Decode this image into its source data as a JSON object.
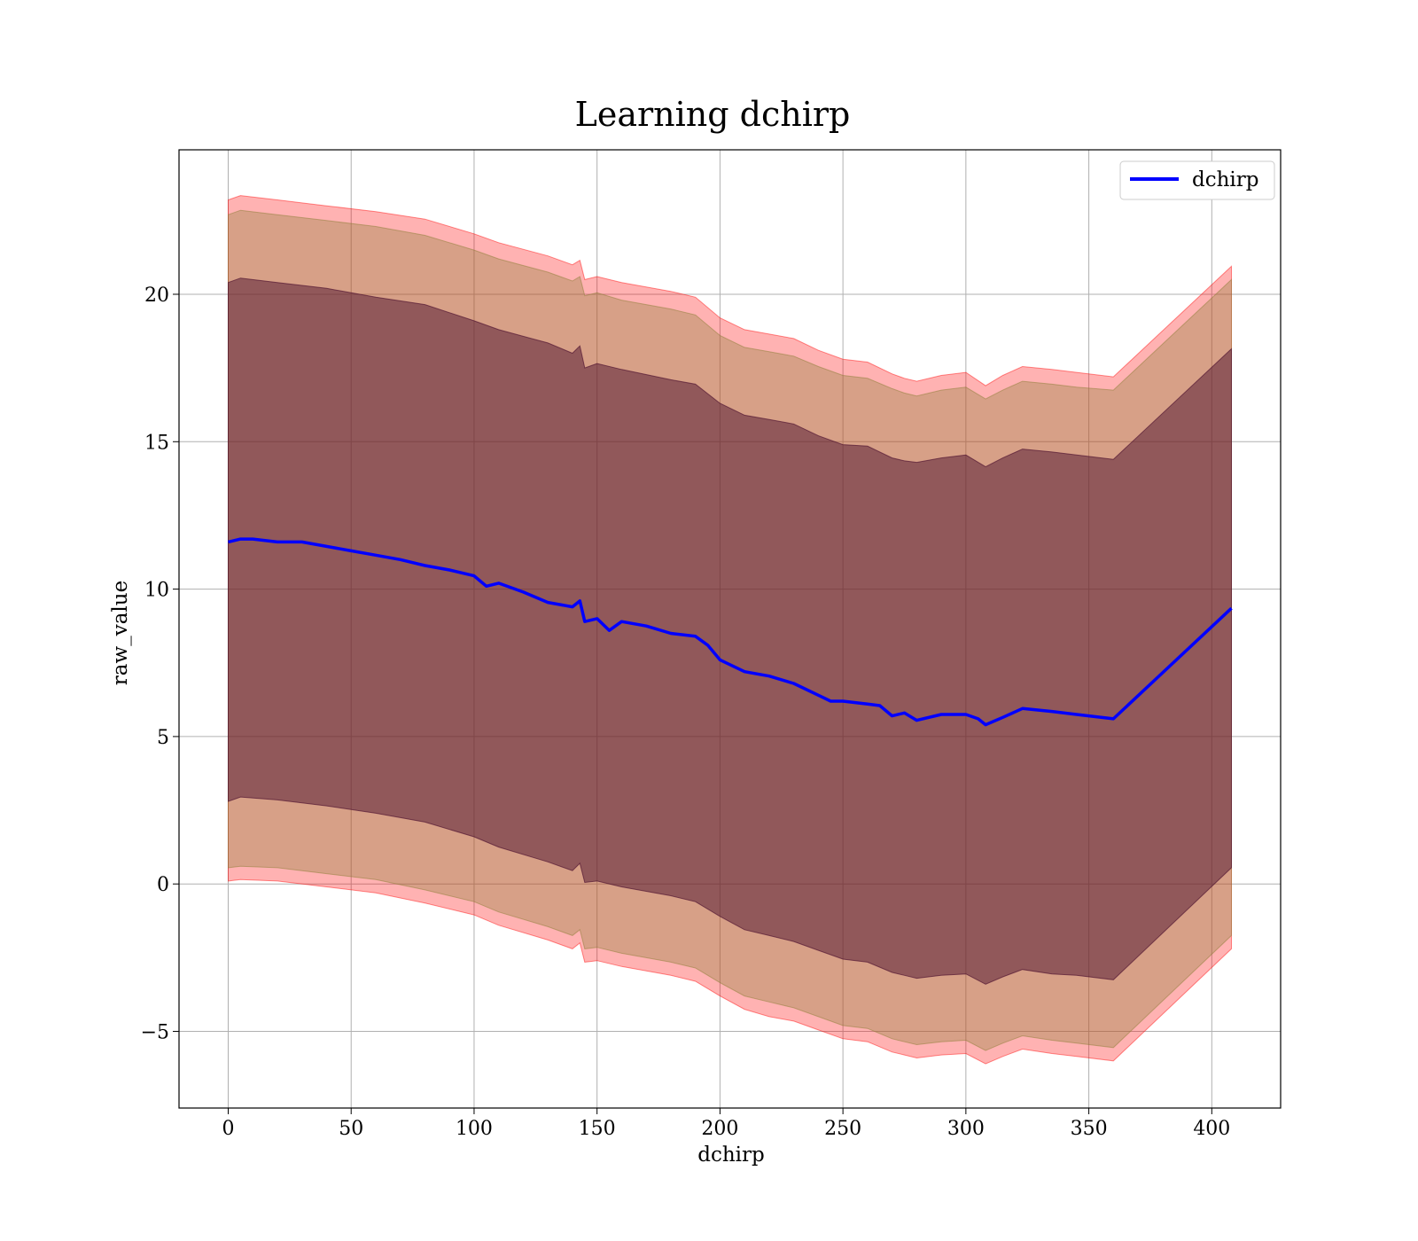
{
  "chart_data": {
    "type": "line",
    "title": "Learning dchirp",
    "xlabel": "dchirp",
    "ylabel": "raw_value",
    "xlim": [
      -20,
      428
    ],
    "ylim": [
      -7.6,
      24.9
    ],
    "xticks": [
      0,
      50,
      100,
      150,
      200,
      250,
      300,
      350,
      400
    ],
    "yticks": [
      -5,
      0,
      5,
      10,
      15,
      20
    ],
    "xtick_labels": [
      "0",
      "50",
      "100",
      "150",
      "200",
      "250",
      "300",
      "350",
      "400"
    ],
    "ytick_labels": [
      "−5",
      "0",
      "5",
      "10",
      "15",
      "20"
    ],
    "grid": true,
    "legend_position": "top-right",
    "series": [
      {
        "name": "dchirp",
        "color": "#0000ff",
        "x": [
          0,
          5,
          10,
          20,
          30,
          40,
          50,
          60,
          70,
          80,
          90,
          100,
          105,
          110,
          120,
          130,
          140,
          143,
          145,
          150,
          155,
          160,
          170,
          180,
          190,
          195,
          200,
          210,
          220,
          230,
          240,
          245,
          250,
          260,
          265,
          270,
          275,
          280,
          290,
          300,
          305,
          308,
          315,
          323,
          335,
          345,
          360,
          408
        ],
        "y": [
          11.6,
          11.7,
          11.7,
          11.6,
          11.6,
          11.45,
          11.3,
          11.15,
          11.0,
          10.8,
          10.65,
          10.45,
          10.1,
          10.2,
          9.9,
          9.55,
          9.4,
          9.6,
          8.9,
          9.0,
          8.6,
          8.9,
          8.75,
          8.5,
          8.4,
          8.1,
          7.6,
          7.2,
          7.05,
          6.8,
          6.4,
          6.2,
          6.2,
          6.1,
          6.05,
          5.7,
          5.8,
          5.55,
          5.75,
          5.75,
          5.6,
          5.4,
          5.65,
          5.95,
          5.85,
          5.75,
          5.6,
          9.35
        ]
      }
    ],
    "bands": [
      {
        "label": "",
        "color": "#ff0000",
        "alpha": 0.3,
        "x": [
          0,
          5,
          20,
          40,
          60,
          80,
          100,
          110,
          130,
          140,
          143,
          145,
          150,
          160,
          180,
          190,
          200,
          210,
          220,
          230,
          240,
          250,
          260,
          270,
          275,
          280,
          290,
          300,
          308,
          315,
          323,
          335,
          345,
          360,
          408
        ],
        "upper": [
          23.2,
          23.35,
          23.2,
          23.0,
          22.8,
          22.55,
          22.05,
          21.75,
          21.3,
          21.0,
          21.15,
          20.5,
          20.6,
          20.4,
          20.1,
          19.9,
          19.2,
          18.8,
          18.65,
          18.5,
          18.1,
          17.8,
          17.7,
          17.3,
          17.15,
          17.05,
          17.25,
          17.35,
          16.9,
          17.25,
          17.55,
          17.45,
          17.35,
          17.2,
          20.95
        ],
        "lower": [
          0.1,
          0.15,
          0.1,
          -0.1,
          -0.3,
          -0.65,
          -1.05,
          -1.4,
          -1.9,
          -2.2,
          -2.0,
          -2.65,
          -2.6,
          -2.8,
          -3.1,
          -3.3,
          -3.8,
          -4.25,
          -4.5,
          -4.65,
          -4.95,
          -5.25,
          -5.35,
          -5.7,
          -5.8,
          -5.9,
          -5.8,
          -5.75,
          -6.1,
          -5.85,
          -5.6,
          -5.75,
          -5.85,
          -6.0,
          -2.2
        ]
      },
      {
        "label": "",
        "color": "#8b7d36",
        "alpha": 0.35,
        "x": [
          0,
          5,
          20,
          40,
          60,
          80,
          100,
          110,
          130,
          140,
          143,
          145,
          150,
          160,
          180,
          190,
          200,
          210,
          220,
          230,
          240,
          250,
          260,
          270,
          275,
          280,
          290,
          300,
          308,
          315,
          323,
          335,
          345,
          360,
          408
        ],
        "upper": [
          22.7,
          22.85,
          22.7,
          22.5,
          22.3,
          22.0,
          21.5,
          21.2,
          20.75,
          20.45,
          20.6,
          19.95,
          20.05,
          19.8,
          19.5,
          19.3,
          18.6,
          18.2,
          18.05,
          17.9,
          17.55,
          17.25,
          17.15,
          16.8,
          16.65,
          16.55,
          16.75,
          16.85,
          16.45,
          16.75,
          17.05,
          16.95,
          16.85,
          16.75,
          20.5
        ],
        "lower": [
          0.55,
          0.6,
          0.55,
          0.35,
          0.15,
          -0.2,
          -0.6,
          -0.95,
          -1.45,
          -1.75,
          -1.55,
          -2.2,
          -2.15,
          -2.35,
          -2.65,
          -2.85,
          -3.35,
          -3.8,
          -4.0,
          -4.2,
          -4.5,
          -4.8,
          -4.9,
          -5.25,
          -5.35,
          -5.45,
          -5.35,
          -5.3,
          -5.65,
          -5.4,
          -5.15,
          -5.3,
          -5.4,
          -5.55,
          -1.75
        ]
      },
      {
        "label": "",
        "color": "#4b0f2e",
        "alpha": 0.5,
        "x": [
          0,
          5,
          20,
          40,
          60,
          80,
          100,
          110,
          130,
          140,
          143,
          145,
          150,
          160,
          180,
          190,
          200,
          210,
          220,
          230,
          240,
          250,
          260,
          270,
          275,
          280,
          290,
          300,
          308,
          315,
          323,
          335,
          345,
          360,
          408
        ],
        "upper": [
          20.4,
          20.55,
          20.4,
          20.2,
          19.9,
          19.65,
          19.1,
          18.8,
          18.35,
          18.0,
          18.25,
          17.5,
          17.65,
          17.45,
          17.1,
          16.95,
          16.3,
          15.9,
          15.75,
          15.6,
          15.2,
          14.9,
          14.85,
          14.45,
          14.35,
          14.3,
          14.45,
          14.55,
          14.15,
          14.45,
          14.75,
          14.65,
          14.55,
          14.4,
          18.15
        ],
        "lower": [
          2.8,
          2.95,
          2.85,
          2.65,
          2.4,
          2.1,
          1.6,
          1.25,
          0.75,
          0.45,
          0.7,
          0.05,
          0.1,
          -0.1,
          -0.4,
          -0.6,
          -1.1,
          -1.55,
          -1.75,
          -1.95,
          -2.25,
          -2.55,
          -2.65,
          -3.0,
          -3.1,
          -3.2,
          -3.1,
          -3.05,
          -3.4,
          -3.15,
          -2.9,
          -3.05,
          -3.1,
          -3.25,
          0.55
        ]
      }
    ]
  }
}
